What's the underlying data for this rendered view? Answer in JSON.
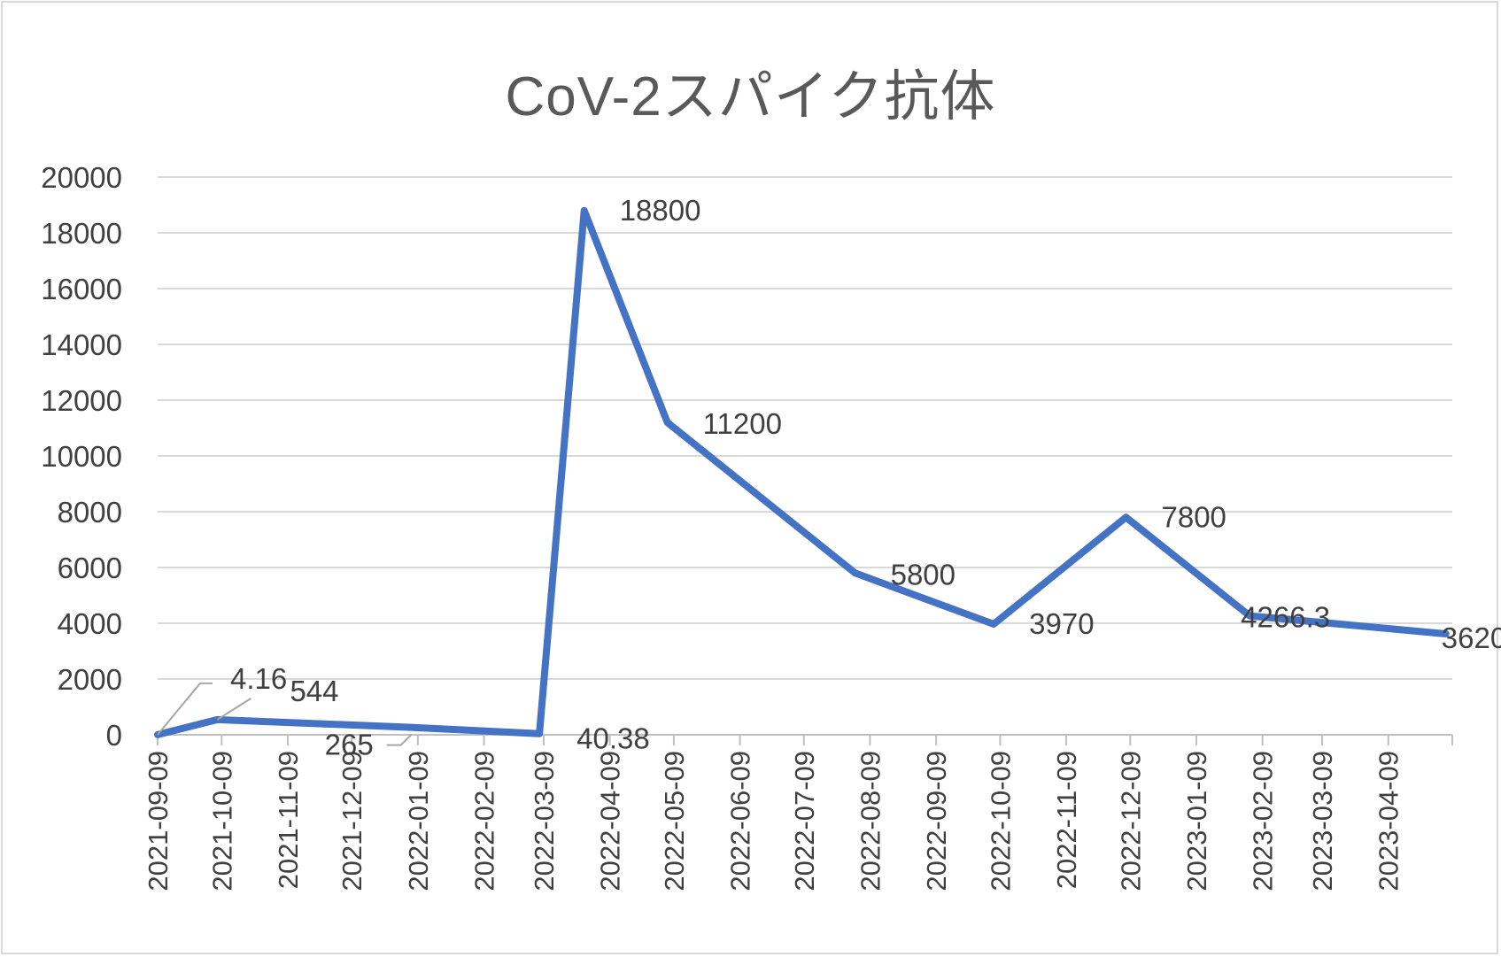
{
  "chart_data": {
    "type": "line",
    "title": "CoV-2スパイク抗体",
    "xlabel": "",
    "ylabel": "",
    "ylim": [
      0,
      20000
    ],
    "yticks": [
      "0",
      "2000",
      "4000",
      "6000",
      "8000",
      "10000",
      "12000",
      "14000",
      "16000",
      "18000",
      "20000"
    ],
    "x_axis_type": "date",
    "xlim": [
      "2021-09-09",
      "2023-05-09"
    ],
    "xticks": [
      "2021-09-09",
      "2021-10-09",
      "2021-11-09",
      "2021-12-09",
      "2022-01-09",
      "2022-02-09",
      "2022-03-09",
      "2022-04-09",
      "2022-05-09",
      "2022-06-09",
      "2022-07-09",
      "2022-08-09",
      "2022-09-09",
      "2022-10-09",
      "2022-11-09",
      "2022-12-09",
      "2023-01-09",
      "2023-02-09",
      "2023-03-09",
      "2023-04-09"
    ],
    "grid": true,
    "legend": "none",
    "series": [
      {
        "color": "#4472c4",
        "points": [
          {
            "x": "2021-09-09",
            "y": 4.16,
            "label": "4.16"
          },
          {
            "x": "2021-10-07",
            "y": 544,
            "label": "544"
          },
          {
            "x": "2022-01-06",
            "y": 265,
            "label": "265"
          },
          {
            "x": "2022-03-07",
            "y": 40.38,
            "label": "40.38"
          },
          {
            "x": "2022-03-28",
            "y": 18800,
            "label": "18800"
          },
          {
            "x": "2022-05-06",
            "y": 11200,
            "label": "11200"
          },
          {
            "x": "2022-08-02",
            "y": 5800,
            "label": "5800"
          },
          {
            "x": "2022-10-06",
            "y": 3970,
            "label": "3970"
          },
          {
            "x": "2022-12-07",
            "y": 7800,
            "label": "7800"
          },
          {
            "x": "2023-02-03",
            "y": 4266.3,
            "label": "4266.3"
          },
          {
            "x": "2023-05-06",
            "y": 3620,
            "label": "3620"
          }
        ]
      }
    ]
  }
}
